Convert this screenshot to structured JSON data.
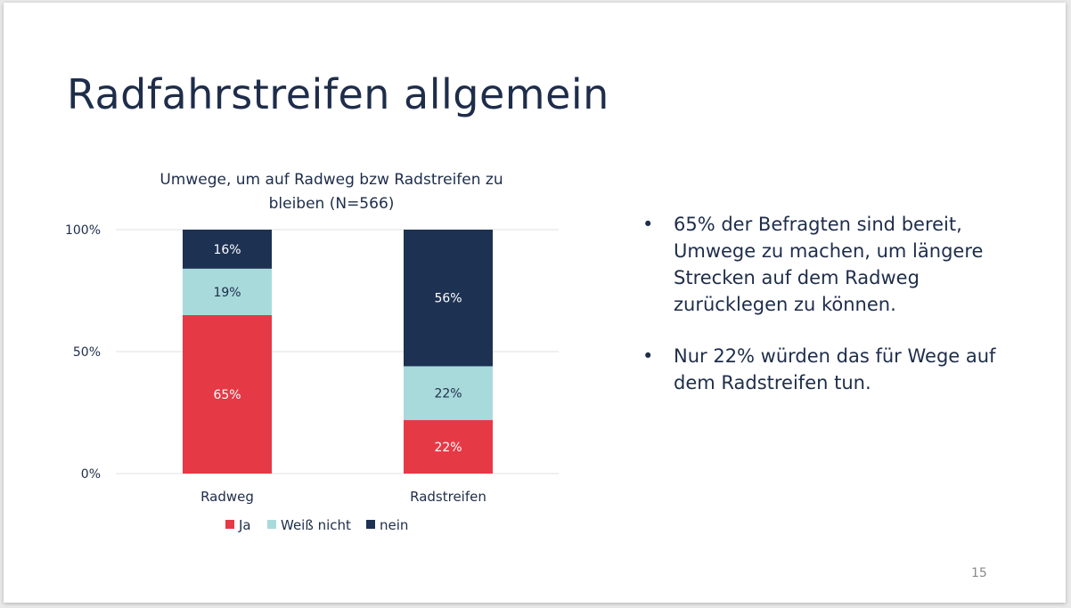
{
  "slide": {
    "title": "Radfahrstreifen allgemein",
    "page_number": "15",
    "bullets": [
      "65% der Befragten sind bereit, Umwege zu machen, um längere Strecken auf dem Radweg zurücklegen zu können.",
      "Nur 22% würden das für Wege auf dem Radstreifen tun."
    ],
    "bullet_symbol": "•"
  },
  "chart_data": {
    "type": "bar",
    "stacked": true,
    "title_lines": [
      "Umwege, um auf Radweg bzw Radstreifen zu",
      "bleiben (N=566)"
    ],
    "categories": [
      "Radweg",
      "Radstreifen"
    ],
    "series": [
      {
        "name": "Ja",
        "values": [
          65,
          22
        ],
        "labels": [
          "65%",
          "22%"
        ],
        "color": "#e63946",
        "label_color": "#ffffff"
      },
      {
        "name": "Weiß nicht",
        "values": [
          19,
          22
        ],
        "labels": [
          "19%",
          "22%"
        ],
        "color": "#a8dadc",
        "label_color": "#1e2d4a"
      },
      {
        "name": "nein",
        "values": [
          16,
          56
        ],
        "labels": [
          "16%",
          "56%"
        ],
        "color": "#1d3152",
        "label_color": "#ffffff"
      }
    ],
    "ylim": [
      0,
      100
    ],
    "yticks": [
      0,
      50,
      100
    ],
    "ytick_labels": [
      "0%",
      "50%",
      "100%"
    ],
    "grid": true,
    "legend_position": "bottom"
  }
}
